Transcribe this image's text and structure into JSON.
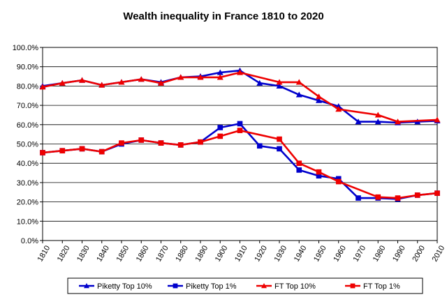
{
  "chart_data": {
    "type": "line",
    "title": "Wealth inequality  in France 1810 to 2020",
    "xlabel": "",
    "ylabel": "",
    "x": [
      1810,
      1820,
      1830,
      1840,
      1850,
      1860,
      1870,
      1880,
      1890,
      1900,
      1910,
      1920,
      1930,
      1940,
      1950,
      1960,
      1970,
      1980,
      1990,
      2000,
      2010
    ],
    "x_tick_labels": [
      "1810",
      "1820",
      "1830",
      "1840",
      "1850",
      "1860",
      "1870",
      "1880",
      "1890",
      "1900",
      "1910",
      "1920",
      "1930",
      "1940",
      "1950",
      "1960",
      "1970",
      "1980",
      "1990",
      "2000",
      "2010"
    ],
    "ylim": [
      0,
      100
    ],
    "y_tick_labels": [
      "0.0%",
      "10.0%",
      "20.0%",
      "30.0%",
      "40.0%",
      "50.0%",
      "60.0%",
      "70.0%",
      "80.0%",
      "90.0%",
      "100.0%"
    ],
    "grid": "horizontal",
    "legend_placement": "bottom",
    "series": [
      {
        "name": "Piketty Top 10%",
        "color": "#0000cc",
        "marker": "triangle",
        "x": [
          1810,
          1820,
          1830,
          1840,
          1850,
          1860,
          1870,
          1880,
          1890,
          1900,
          1910,
          1920,
          1930,
          1940,
          1950,
          1960,
          1970,
          1980,
          1990,
          2000,
          2010
        ],
        "values": [
          80.0,
          81.5,
          83.0,
          80.5,
          82.0,
          83.5,
          82.0,
          84.5,
          85.0,
          87.0,
          88.0,
          81.5,
          80.0,
          75.5,
          72.5,
          69.5,
          61.5,
          61.5,
          61.0,
          61.5,
          62.0
        ]
      },
      {
        "name": "Piketty Top 1%",
        "color": "#0000cc",
        "marker": "square",
        "x": [
          1810,
          1820,
          1830,
          1840,
          1850,
          1860,
          1870,
          1880,
          1890,
          1900,
          1910,
          1920,
          1930,
          1940,
          1950,
          1960,
          1970,
          1980,
          1990,
          2000,
          2010
        ],
        "values": [
          45.5,
          46.5,
          47.5,
          46.0,
          50.0,
          52.0,
          50.5,
          49.5,
          51.0,
          58.5,
          60.5,
          49.0,
          47.5,
          36.5,
          33.5,
          32.0,
          22.0,
          22.0,
          21.5,
          23.5,
          24.5
        ]
      },
      {
        "name": "FT Top 10%",
        "color": "#ee0000",
        "marker": "triangle",
        "x": [
          1810,
          1820,
          1830,
          1840,
          1850,
          1860,
          1870,
          1880,
          1890,
          1900,
          1910,
          1930,
          1940,
          1950,
          1960,
          1980,
          1990,
          2010
        ],
        "values": [
          79.5,
          81.5,
          83.0,
          80.5,
          82.0,
          83.5,
          81.5,
          84.5,
          84.5,
          84.5,
          87.0,
          82.0,
          82.0,
          74.5,
          68.0,
          65.0,
          61.5,
          62.5
        ]
      },
      {
        "name": "FT Top 1%",
        "color": "#ee0000",
        "marker": "square",
        "x": [
          1810,
          1820,
          1830,
          1840,
          1850,
          1860,
          1870,
          1880,
          1890,
          1900,
          1910,
          1930,
          1940,
          1950,
          1960,
          1980,
          1990,
          2000,
          2010
        ],
        "values": [
          45.5,
          46.5,
          47.5,
          46.0,
          50.5,
          52.0,
          50.5,
          49.5,
          51.0,
          54.0,
          57.0,
          52.5,
          40.0,
          35.5,
          30.5,
          22.5,
          22.0,
          23.5,
          24.5
        ]
      }
    ]
  }
}
